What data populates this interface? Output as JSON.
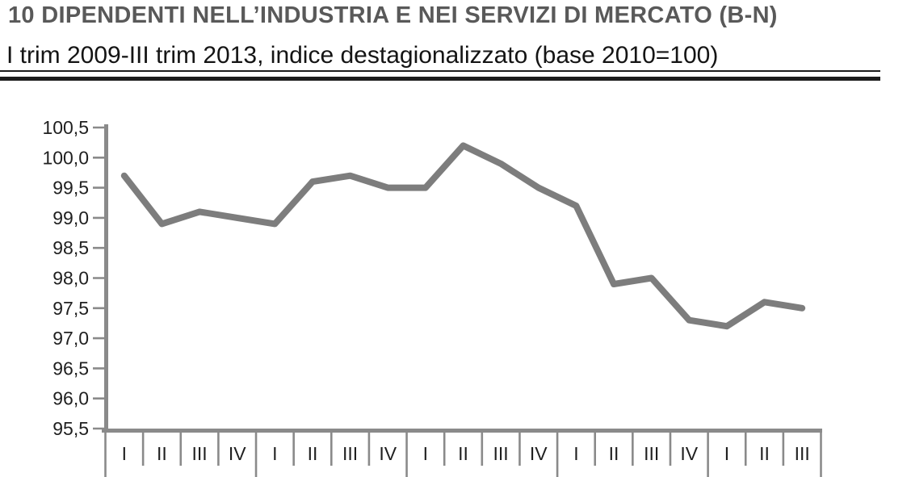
{
  "page": {
    "title": "10 DIPENDENTI NELL’INDUSTRIA E NEI SERVIZI DI MERCATO (B-N)",
    "subtitle": "I trim 2009-III trim 2013, indice destagionalizzato (base 2010=100)"
  },
  "colors": {
    "title_text": "#595959",
    "subtitle_text": "#141414",
    "axis": "#8a8a8a",
    "line": "#7d7d7d",
    "tick_text": "#1f1f1f",
    "rule": "#1c1c1c"
  },
  "chart_data": {
    "type": "line",
    "title": "10 DIPENDENTI NELL’INDUSTRIA E NEI SERVIZI DI MERCATO (B-N)",
    "subtitle": "I trim 2009-III trim 2013, indice destagionalizzato (base 2010=100)",
    "categories": [
      "I",
      "II",
      "III",
      "IV",
      "I",
      "II",
      "III",
      "IV",
      "I",
      "II",
      "III",
      "IV",
      "I",
      "II",
      "III",
      "IV",
      "I",
      "II",
      "III"
    ],
    "values": [
      99.7,
      98.9,
      99.1,
      99.0,
      98.9,
      99.6,
      99.7,
      99.5,
      99.5,
      100.2,
      99.9,
      99.5,
      99.2,
      97.9,
      98.0,
      97.3,
      97.2,
      97.6,
      97.5
    ],
    "ylim": [
      95.5,
      100.5
    ],
    "y_ticks": [
      100.5,
      100.0,
      99.5,
      99.0,
      98.5,
      98.0,
      97.5,
      97.0,
      96.5,
      96.0,
      95.5
    ],
    "y_tick_labels": [
      "100,5",
      "100,0",
      "99,5",
      "99,0",
      "98,5",
      "98,0",
      "97,5",
      "97,0",
      "96,5",
      "96,0",
      "95,5"
    ],
    "xlabel": "",
    "ylabel": "",
    "grid": false,
    "legend": false,
    "year_group_size": 4,
    "line_color": "#7d7d7d"
  }
}
